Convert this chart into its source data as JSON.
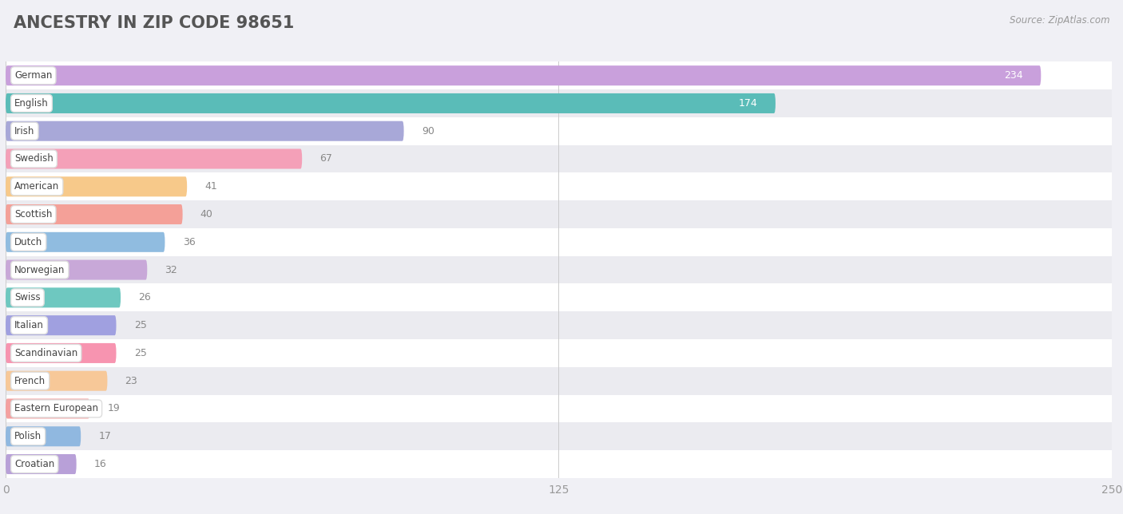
{
  "title": "ANCESTRY IN ZIP CODE 98651",
  "source": "Source: ZipAtlas.com",
  "categories": [
    "German",
    "English",
    "Irish",
    "Swedish",
    "American",
    "Scottish",
    "Dutch",
    "Norwegian",
    "Swiss",
    "Italian",
    "Scandinavian",
    "French",
    "Eastern European",
    "Polish",
    "Croatian"
  ],
  "values": [
    234,
    174,
    90,
    67,
    41,
    40,
    36,
    32,
    26,
    25,
    25,
    23,
    19,
    17,
    16
  ],
  "colors": [
    "#c9a0dc",
    "#5abcb8",
    "#a8a8d8",
    "#f4a0b8",
    "#f7c98a",
    "#f4a098",
    "#90bce0",
    "#c8a8d8",
    "#6ec8c0",
    "#a0a0e0",
    "#f794b0",
    "#f7c898",
    "#f4a0a0",
    "#90b8e0",
    "#b8a0d8"
  ],
  "xlim": [
    0,
    250
  ],
  "xticks": [
    0,
    125,
    250
  ],
  "background_color": "#f0f0f5",
  "row_colors": [
    "#ffffff",
    "#ebebf0"
  ],
  "title_fontsize": 15,
  "bar_height": 0.72,
  "inside_label_threshold": 150
}
